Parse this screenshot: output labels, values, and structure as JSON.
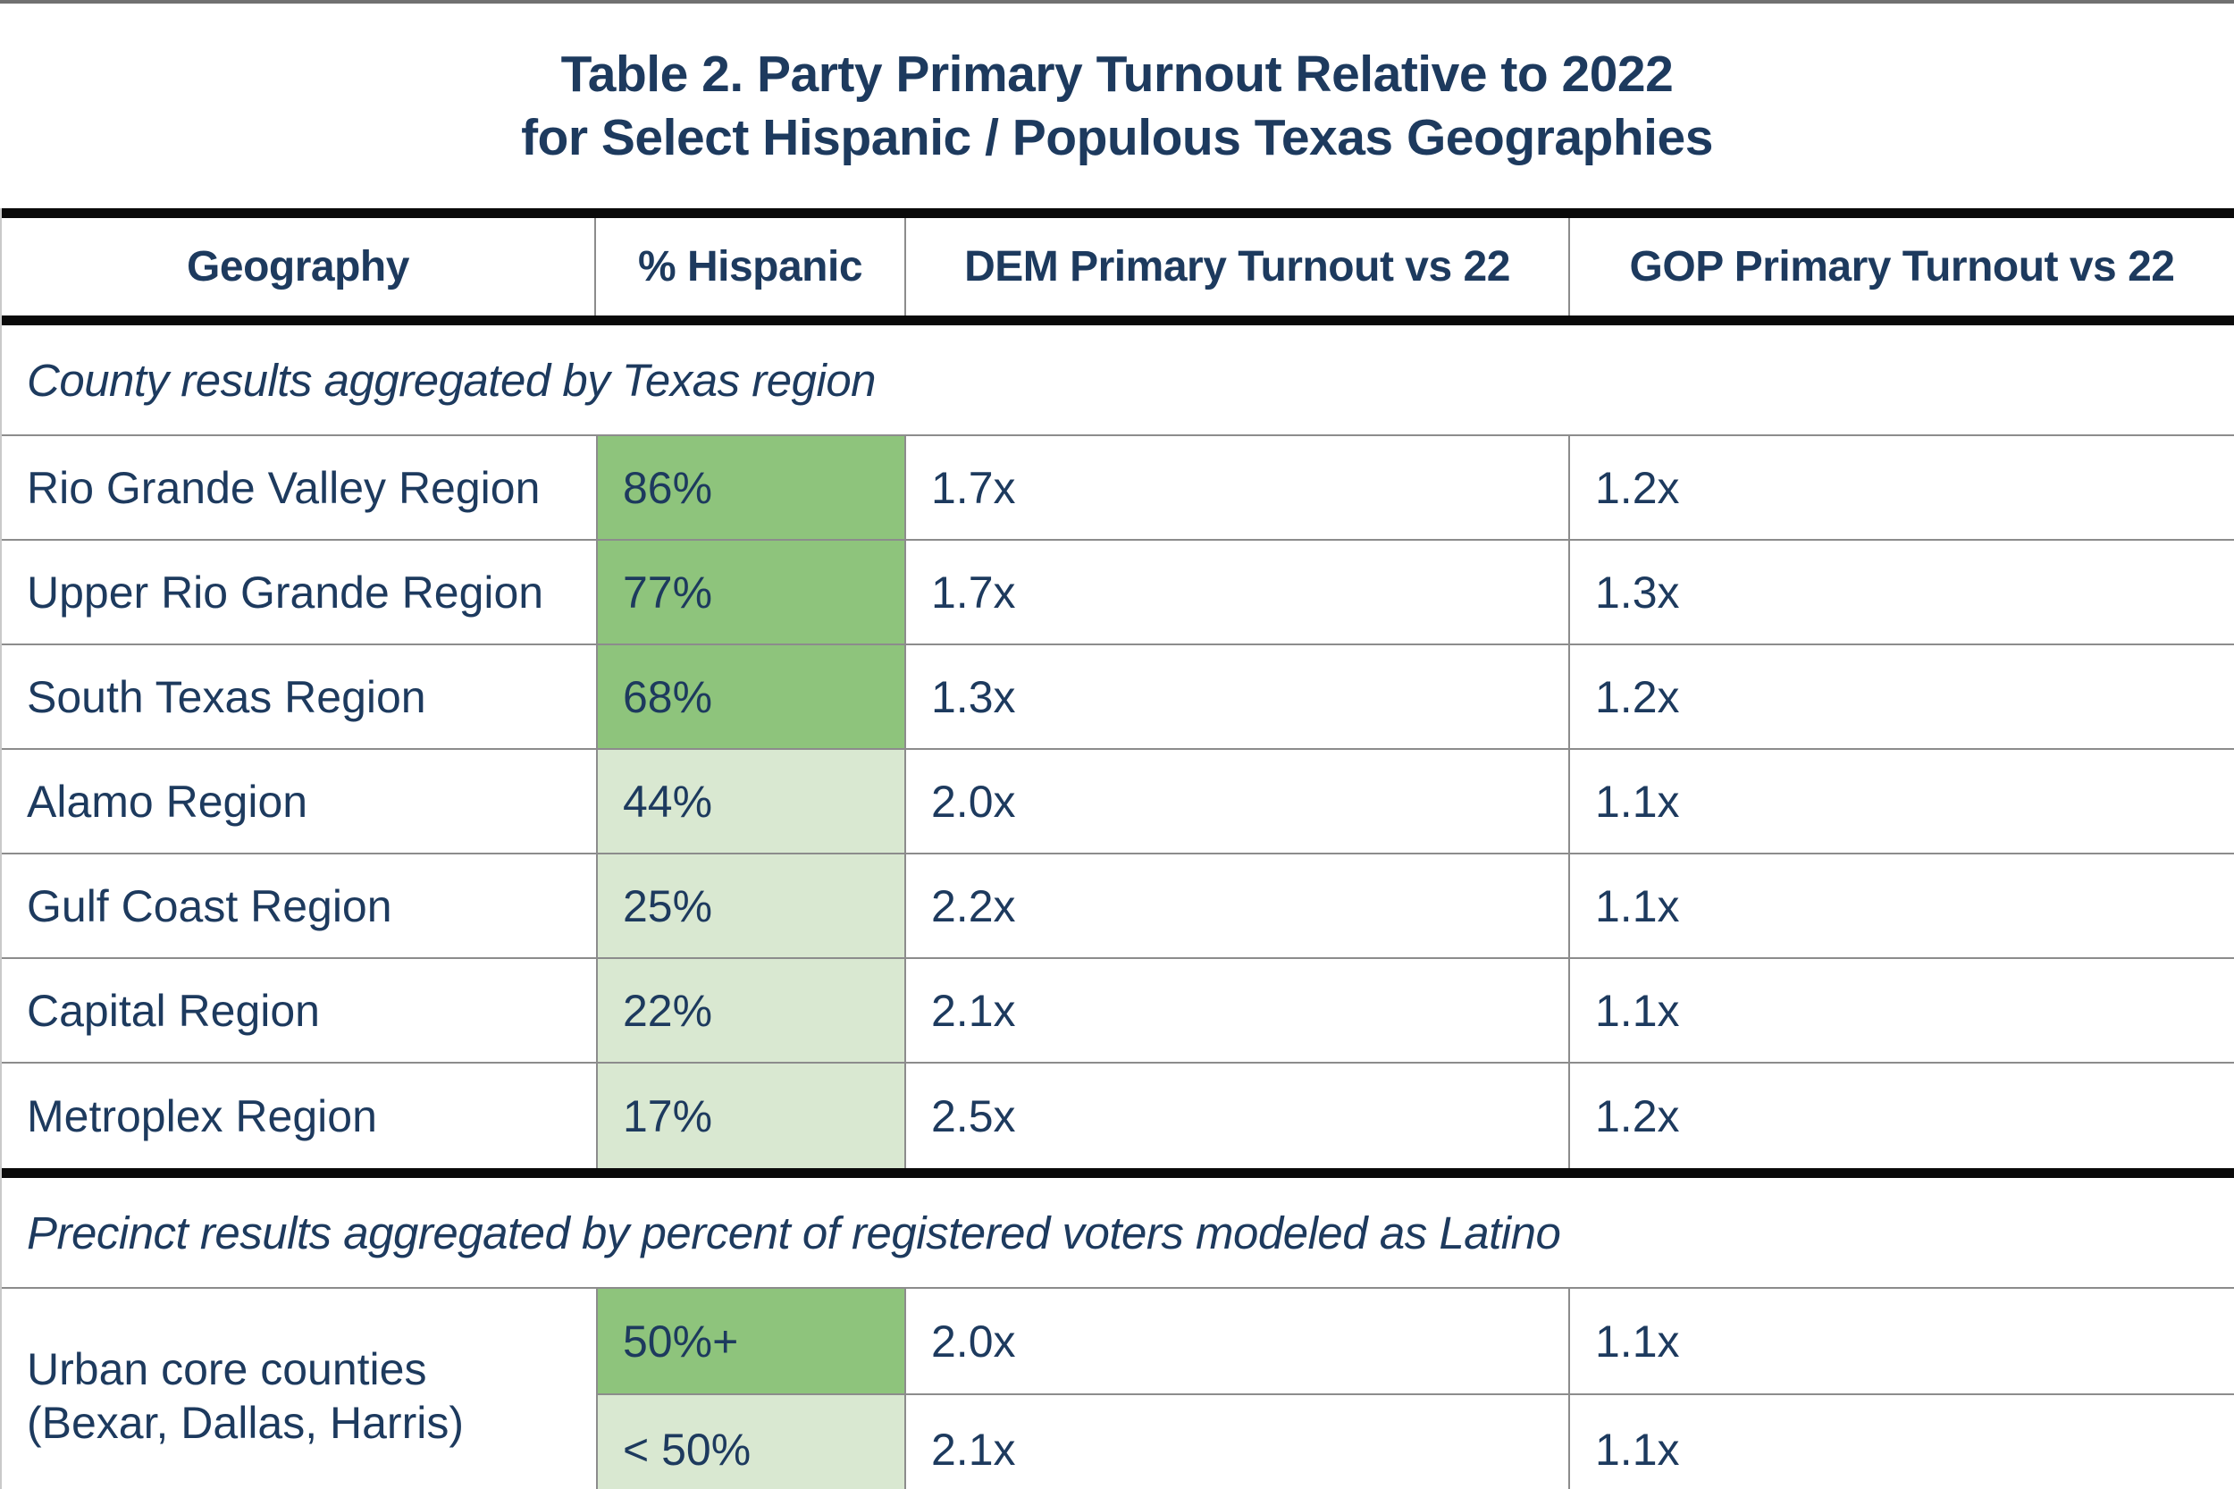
{
  "title": {
    "line1": "Table 2. Party Primary Turnout Relative to 2022",
    "line2": "for Select Hispanic / Populous Texas Geographies"
  },
  "colors": {
    "navy_text": "#1d3a5e",
    "green_dark": "#8ec47c",
    "green_light": "#d9e8d1",
    "thin_border": "#8c8c8c",
    "thick_border": "#0a0a0a",
    "top_bar": "#717171"
  },
  "table": {
    "columns": {
      "geography": "Geography",
      "hispanic": "% Hispanic",
      "dem": "DEM Primary Turnout vs 22",
      "gop": "GOP Primary Turnout vs 22"
    },
    "sections": [
      {
        "label": "County results aggregated by Texas region",
        "rows": [
          {
            "geography": "Rio Grande Valley Region",
            "hispanic": "86%",
            "dem": "1.7x",
            "gop": "1.2x",
            "shade": "dark"
          },
          {
            "geography": "Upper Rio Grande Region",
            "hispanic": "77%",
            "dem": "1.7x",
            "gop": "1.3x",
            "shade": "dark"
          },
          {
            "geography": "South Texas Region",
            "hispanic": "68%",
            "dem": "1.3x",
            "gop": "1.2x",
            "shade": "dark"
          },
          {
            "geography": "Alamo Region",
            "hispanic": "44%",
            "dem": "2.0x",
            "gop": "1.1x",
            "shade": "light"
          },
          {
            "geography": "Gulf Coast Region",
            "hispanic": "25%",
            "dem": "2.2x",
            "gop": "1.1x",
            "shade": "light"
          },
          {
            "geography": "Capital Region",
            "hispanic": "22%",
            "dem": "2.1x",
            "gop": "1.1x",
            "shade": "light"
          },
          {
            "geography": "Metroplex Region",
            "hispanic": "17%",
            "dem": "2.5x",
            "gop": "1.2x",
            "shade": "light"
          }
        ]
      },
      {
        "label": "Precinct results aggregated by percent of registered voters modeled as Latino",
        "group": {
          "geography_line1": "Urban core counties",
          "geography_line2": "(Bexar, Dallas, Harris)",
          "rows": [
            {
              "hispanic": "50%+",
              "dem": "2.0x",
              "gop": "1.1x",
              "shade": "dark"
            },
            {
              "hispanic": "< 50%",
              "dem": "2.1x",
              "gop": "1.1x",
              "shade": "light"
            }
          ]
        }
      }
    ]
  }
}
